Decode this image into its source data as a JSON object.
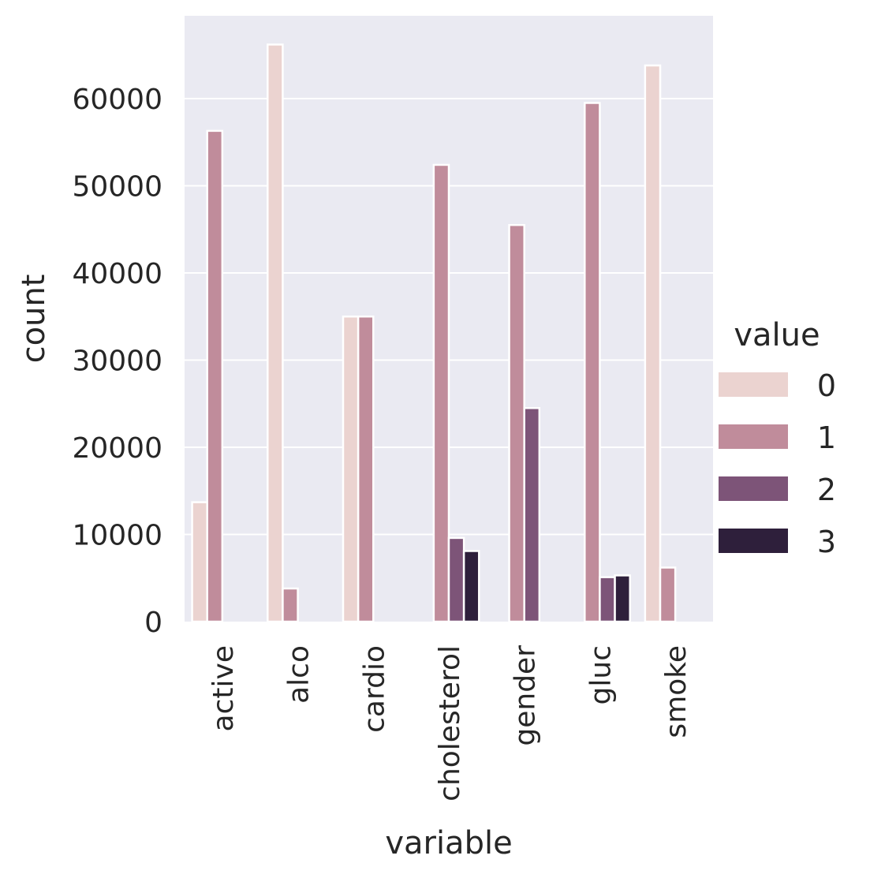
{
  "chart_data": {
    "type": "bar",
    "title": "",
    "xlabel": "variable",
    "ylabel": "count",
    "ylim": [
      0,
      69500
    ],
    "yticks": [
      0,
      10000,
      20000,
      30000,
      40000,
      50000,
      60000
    ],
    "ytick_labels": [
      "0",
      "10000",
      "20000",
      "30000",
      "40000",
      "50000",
      "60000"
    ],
    "categories": [
      "active",
      "alco",
      "cardio",
      "cholesterol",
      "gender",
      "gluc",
      "smoke"
    ],
    "grid": true,
    "legend": {
      "title": "value",
      "placement": "right"
    },
    "series": [
      {
        "name": "0",
        "color": "#ebd3d0",
        "values": [
          13700,
          66200,
          35000,
          0,
          0,
          0,
          63800
        ]
      },
      {
        "name": "1",
        "color": "#c08c9b",
        "values": [
          56300,
          3800,
          35000,
          52400,
          45500,
          59500,
          6200
        ]
      },
      {
        "name": "2",
        "color": "#7d5478",
        "values": [
          0,
          0,
          0,
          9600,
          24500,
          5100,
          0
        ]
      },
      {
        "name": "3",
        "color": "#2e1f3b",
        "values": [
          0,
          0,
          0,
          8100,
          0,
          5300,
          0
        ]
      }
    ]
  }
}
